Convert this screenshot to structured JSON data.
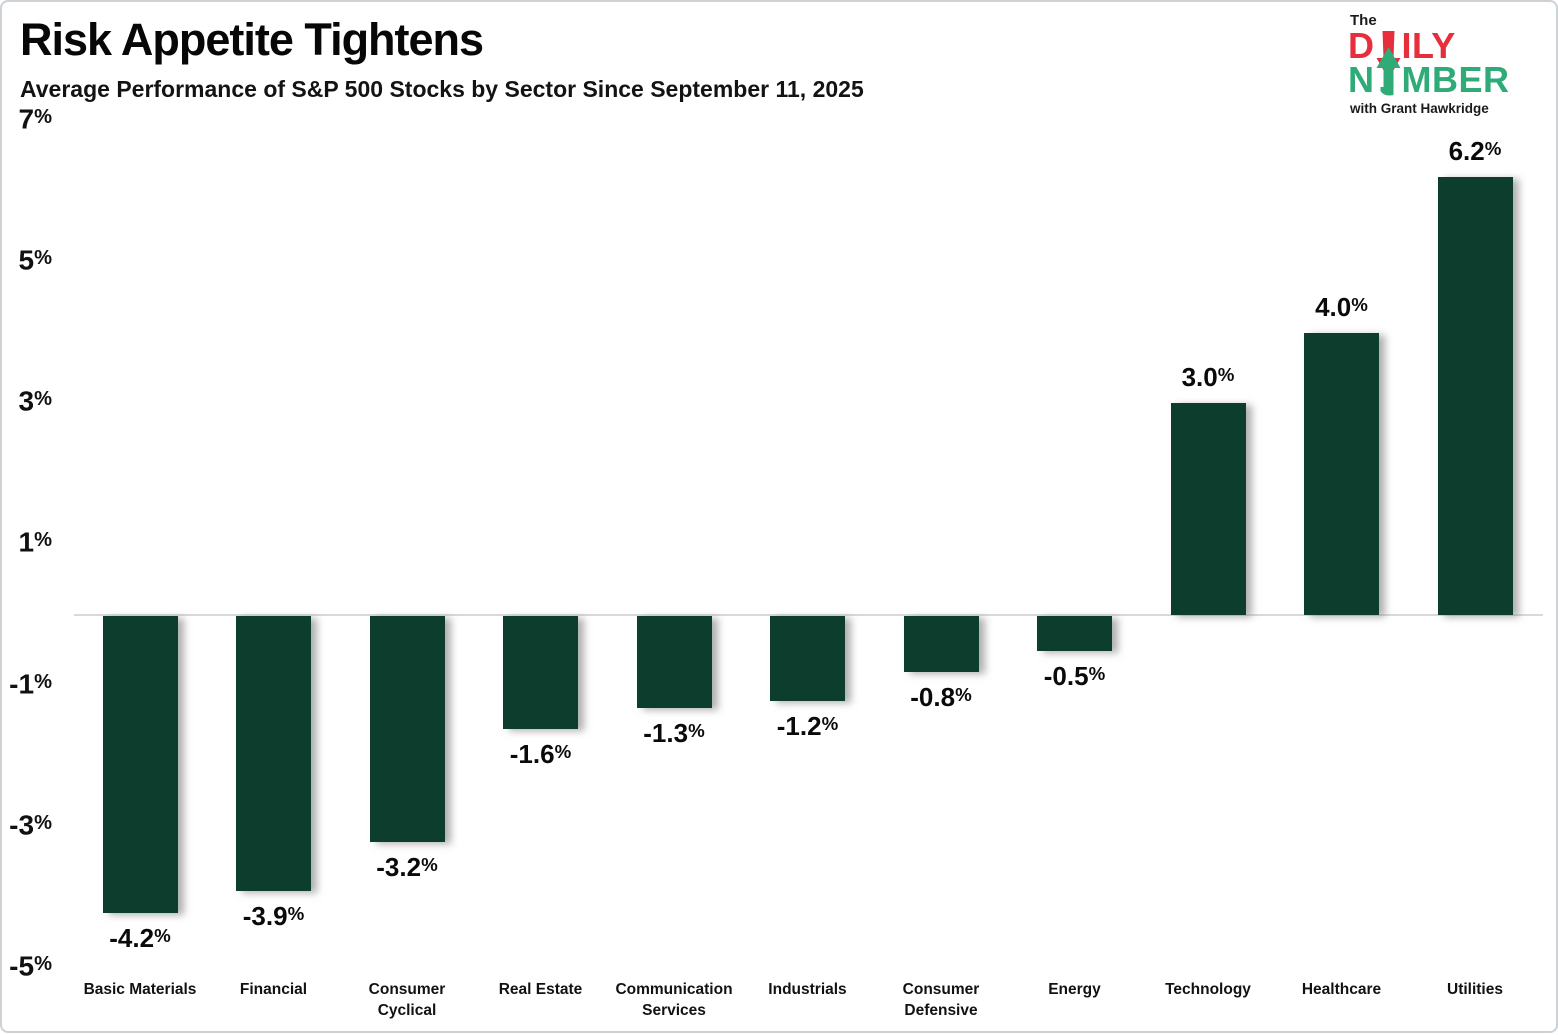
{
  "header": {
    "title": "Risk Appetite Tightens",
    "subtitle": "Average Performance of S&P 500 Stocks by Sector Since September 11, 2025"
  },
  "logo": {
    "the": "The",
    "daily_pre": "D",
    "daily_post": "ILY",
    "number_pre": "N",
    "number_post": "MBER",
    "tagline": "with Grant Hawkridge",
    "red": "#E62E3C",
    "green": "#2FAB78"
  },
  "chart_data": {
    "type": "bar",
    "title": "Risk Appetite Tightens",
    "subtitle": "Average Performance of S&P 500 Stocks by Sector Since September 11, 2025",
    "categories": [
      "Basic Materials",
      "Financial",
      "Consumer Cyclical",
      "Real Estate",
      "Communication Services",
      "Industrials",
      "Consumer Defensive",
      "Energy",
      "Technology",
      "Healthcare",
      "Utilities"
    ],
    "category_display": [
      "Basic Materials",
      "Financial",
      "Consumer\nCyclical",
      "Real Estate",
      "Communication\nServices",
      "Industrials",
      "Consumer\nDefensive",
      "Energy",
      "Technology",
      "Healthcare",
      "Utilities"
    ],
    "values": [
      -4.2,
      -3.9,
      -3.2,
      -1.6,
      -1.3,
      -1.2,
      -0.8,
      -0.5,
      3.0,
      4.0,
      6.2
    ],
    "value_labels": [
      "-4.2%",
      "-3.9%",
      "-3.2%",
      "-1.6%",
      "-1.3%",
      "-1.2%",
      "-0.8%",
      "-0.5%",
      "3.0%",
      "4.0%",
      "6.2%"
    ],
    "yticks": {
      "labels": [
        "7%",
        "5%",
        "3%",
        "1%",
        "-1%",
        "-3%",
        "-5%"
      ],
      "values": [
        7,
        5,
        3,
        1,
        -1,
        -3,
        -5
      ]
    },
    "ylim": [
      -5.6,
      7.2
    ],
    "xlabel": "",
    "ylabel": "",
    "grid": false,
    "legend": "none",
    "bar_color": "#0C3D2D",
    "zero_line_color": "#D9D9D9"
  }
}
